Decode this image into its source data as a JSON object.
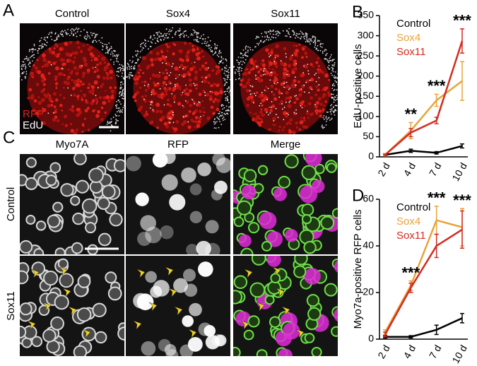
{
  "panel_a": {
    "letter": "A",
    "columns": [
      "Control",
      "Sox4",
      "Sox11"
    ],
    "stain_labels": [
      "RFP",
      "EdU"
    ]
  },
  "panel_c": {
    "letter": "C",
    "columns": [
      "Myo7A",
      "RFP",
      "Merge"
    ],
    "rows": [
      "Control",
      "Sox11"
    ]
  },
  "chart_data": [
    {
      "type": "line",
      "panel": "B",
      "y_label": "EdU-positive cells",
      "categories": [
        "2 d",
        "4 d",
        "7 d",
        "10 d"
      ],
      "ylim": [
        0,
        350
      ],
      "yticks": [
        0,
        50,
        100,
        150,
        200,
        250,
        300,
        350
      ],
      "series": [
        {
          "name": "Control",
          "color": "#000000",
          "values": [
            5,
            15,
            10,
            27
          ],
          "errors": [
            2,
            4,
            3,
            5
          ]
        },
        {
          "name": "Sox4",
          "color": "#e8a33a",
          "values": [
            5,
            65,
            140,
            188
          ],
          "errors": [
            3,
            20,
            15,
            48
          ]
        },
        {
          "name": "Sox11",
          "color": "#d42a20",
          "values": [
            5,
            60,
            90,
            287
          ],
          "errors": [
            2,
            10,
            8,
            30
          ]
        }
      ],
      "annotations": [
        {
          "text": "**",
          "category": "4 d"
        },
        {
          "text": "***",
          "category": "7 d"
        },
        {
          "text": "***",
          "category": "10 d"
        }
      ]
    },
    {
      "type": "line",
      "panel": "D",
      "y_label": "Myo7a-positive RFP cells",
      "categories": [
        "2 d",
        "4 d",
        "7 d",
        "10 d"
      ],
      "ylim": [
        0,
        60
      ],
      "yticks": [
        0,
        20,
        40,
        60
      ],
      "series": [
        {
          "name": "Control",
          "color": "#000000",
          "values": [
            1,
            1,
            4,
            9
          ],
          "errors": [
            0.5,
            0.5,
            2,
            2
          ]
        },
        {
          "name": "Sox4",
          "color": "#e8a33a",
          "values": [
            3,
            23,
            51,
            48
          ],
          "errors": [
            1,
            2,
            6,
            8
          ]
        },
        {
          "name": "Sox11",
          "color": "#d42a20",
          "values": [
            2,
            22,
            40,
            47
          ],
          "errors": [
            1,
            2,
            5,
            8
          ]
        }
      ],
      "annotations": [
        {
          "text": "***",
          "category": "4 d"
        },
        {
          "text": "***",
          "category": "7 d"
        },
        {
          "text": "***",
          "category": "10 d"
        }
      ]
    }
  ]
}
